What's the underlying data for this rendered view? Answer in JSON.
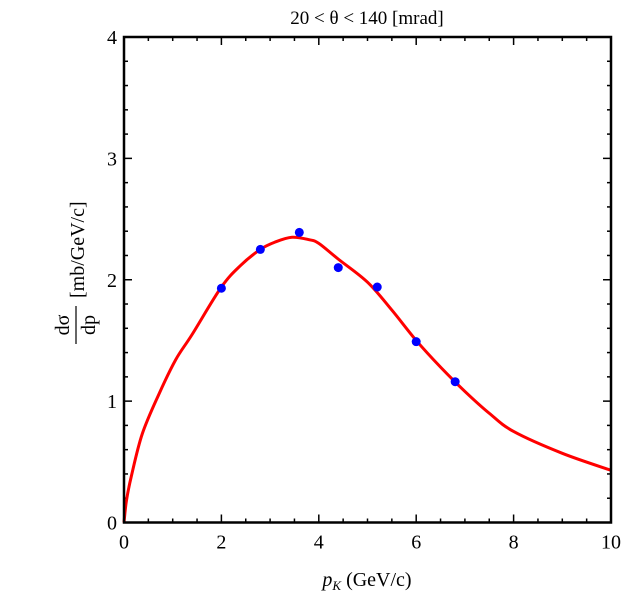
{
  "chart_data": {
    "type": "scatter",
    "title": "20 < θ < 140 [mrad]",
    "xlabel": {
      "main": "p",
      "subscript": "K",
      "unit": " (GeV/c)"
    },
    "ylabel": {
      "numerator": "dσ",
      "denominator": "dp",
      "unit": "[mb/GeV/c]"
    },
    "xlim": [
      0,
      10
    ],
    "ylim": [
      0,
      4
    ],
    "x_ticks": [
      0,
      2,
      4,
      6,
      8,
      10
    ],
    "y_ticks": [
      0,
      1,
      2,
      3,
      4
    ],
    "grid": false,
    "series": [
      {
        "type": "scatter",
        "color": "#0000ff",
        "x": [
          2.0,
          2.8,
          3.6,
          4.4,
          5.2,
          6.0,
          6.8
        ],
        "y": [
          1.93,
          2.25,
          2.39,
          2.1,
          1.94,
          1.49,
          1.16
        ]
      },
      {
        "type": "line",
        "color": "#ff0000",
        "x": [
          0,
          0.05,
          0.15,
          0.375,
          0.72,
          1.06,
          1.4,
          2.0,
          2.4,
          2.8,
          3.1,
          3.45,
          3.8,
          4.0,
          4.4,
          5.0,
          5.5,
          6.0,
          6.5,
          7.0,
          7.5,
          8.0,
          9.0,
          10.0
        ],
        "y": [
          0,
          0.18,
          0.38,
          0.73,
          1.06,
          1.34,
          1.55,
          1.94,
          2.12,
          2.25,
          2.31,
          2.35,
          2.33,
          2.3,
          2.17,
          1.98,
          1.75,
          1.5,
          1.28,
          1.08,
          0.9,
          0.75,
          0.57,
          0.43
        ]
      }
    ]
  }
}
